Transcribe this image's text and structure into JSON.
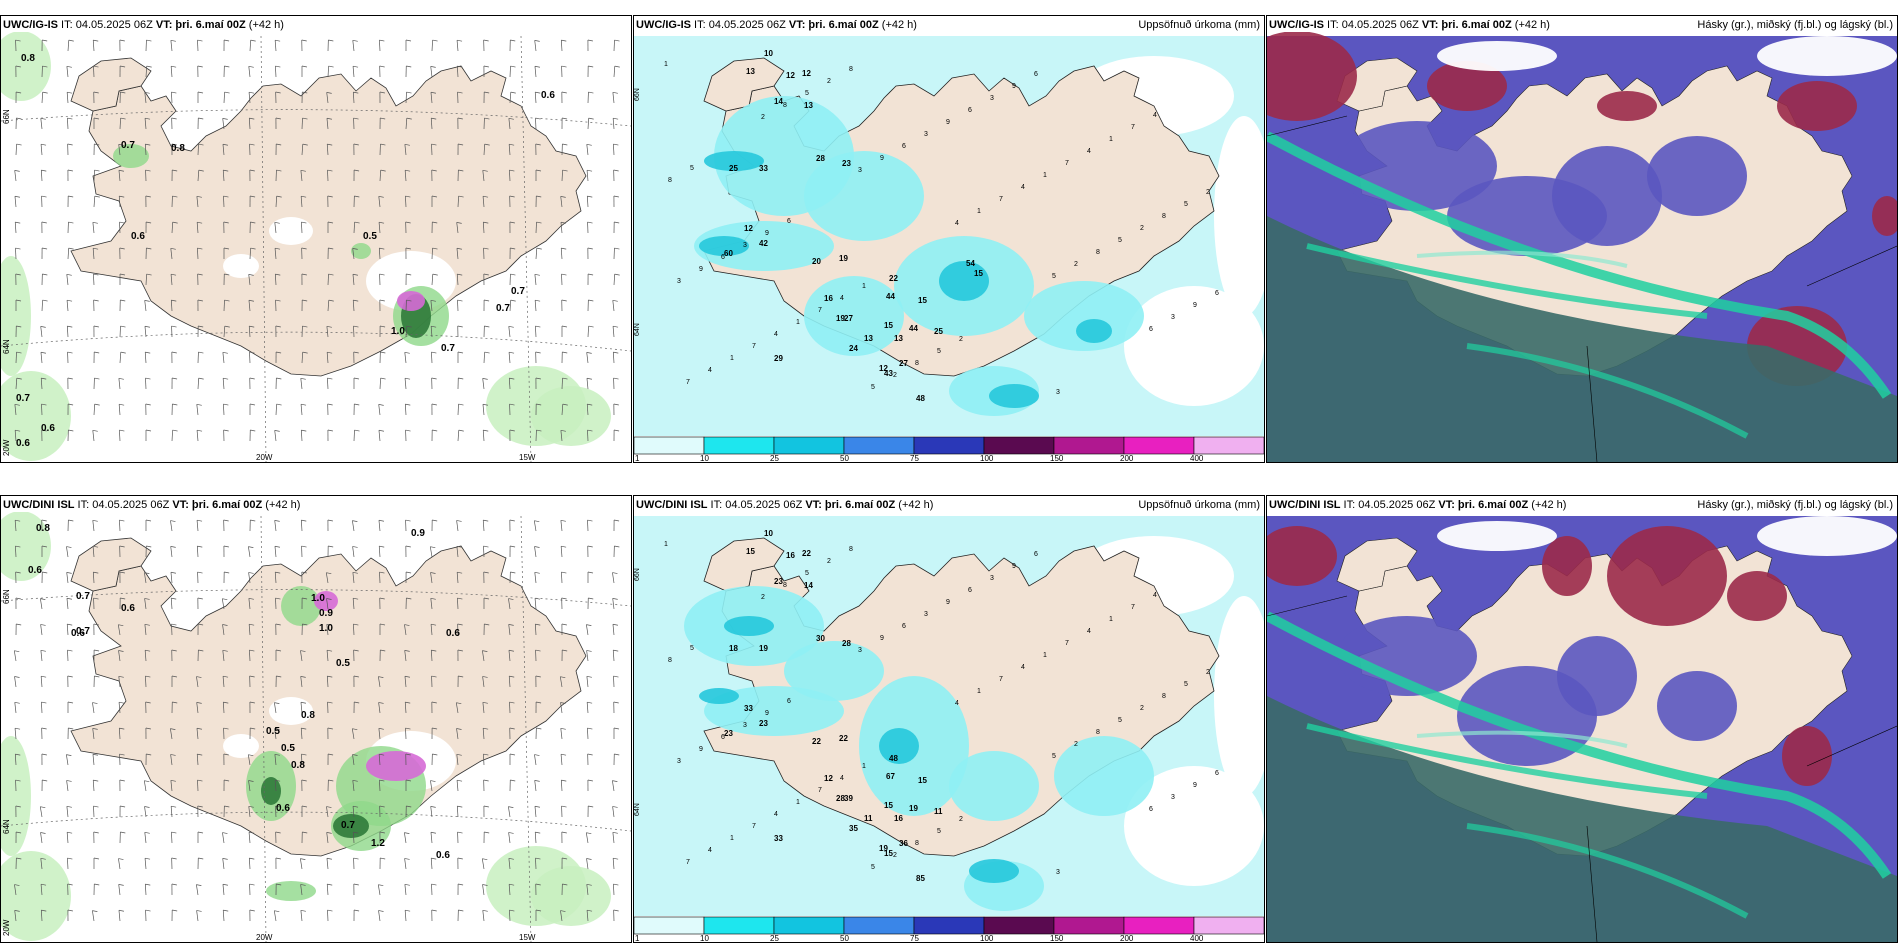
{
  "colors": {
    "land": "#f2e3d5",
    "sea_white": "#ffffff",
    "light_green": "#c8f0c0",
    "mid_green": "#8fd88a",
    "dark_green": "#2f7a3a",
    "magenta": "#d66ad6",
    "cyan_light": "#c8f6f8",
    "cyan_mid": "#8ff0f4",
    "cyan_dark": "#26c8dc",
    "blue_mid": "#3a86d8",
    "cloud_blue": "#5b56c0",
    "cloud_red": "#9b2a4a",
    "cloud_dark": "#3a6a68",
    "jet_green": "#20d0a0"
  },
  "panels": [
    {
      "id": "wind-ig",
      "title_model": "UWC/IG-IS",
      "title_it": "IT: 04.05.2025 06Z",
      "title_vt_label": "VT:",
      "title_vt": "þri. 6.maí 00Z",
      "title_lead": "(+42 h)",
      "right_title": "",
      "labels": [
        "0.8",
        "0.7",
        "0.8",
        "0.6",
        "0.5",
        "0.7",
        "0.7",
        "1.0",
        "0.7",
        "0.6",
        "0.7",
        "0.6",
        "0.6"
      ],
      "axis": {
        "lon": [
          "20W",
          "15W"
        ],
        "lat": [
          "66N",
          "64N",
          "20W"
        ]
      }
    },
    {
      "id": "precip-ig",
      "title_model": "UWC/IG-IS",
      "title_it": "IT: 04.05.2025 06Z",
      "title_vt_label": "VT:",
      "title_vt": "þri. 6.maí 00Z",
      "title_lead": "(+42 h)",
      "right_title": "Uppsöfnuð úrkoma (mm)",
      "labels": [
        "10",
        "13",
        "12",
        "14",
        "12",
        "13",
        "25",
        "33",
        "28",
        "23",
        "12",
        "60",
        "42",
        "20",
        "19",
        "16",
        "19",
        "27",
        "44",
        "22",
        "15",
        "44",
        "24",
        "29",
        "13",
        "13",
        "12",
        "43",
        "48",
        "27",
        "25",
        "15",
        "15",
        "54"
      ],
      "axis": {
        "lat": [
          "66N",
          "64N"
        ]
      }
    },
    {
      "id": "cloud-ig",
      "title_model": "UWC/IG-IS",
      "title_it": "IT: 04.05.2025 06Z",
      "title_vt_label": "VT:",
      "title_vt": "þri. 6.maí 00Z",
      "title_lead": "(+42 h)",
      "right_title": "Hásky (gr.), miðský (fj.bl.) og lágský (bl.)"
    },
    {
      "id": "wind-dini",
      "title_model": "UWC/DINI ISL",
      "title_it": "IT: 04.05.2025 06Z",
      "title_vt_label": "VT:",
      "title_vt": "þri. 6.maí 00Z",
      "title_lead": "(+42 h)",
      "right_title": "",
      "labels": [
        "0.8",
        "0.6",
        "0.7",
        "0.7",
        "0.6",
        "0.9",
        "1.0",
        "0.9",
        "1.0",
        "0.5",
        "0.6",
        "0.6",
        "0.5",
        "0.5",
        "0.8",
        "0.8",
        "0.6",
        "0.7",
        "1.2",
        "0.6"
      ],
      "axis": {
        "lon": [
          "20W",
          "15W"
        ],
        "lat": [
          "66N",
          "64N",
          "20W"
        ]
      }
    },
    {
      "id": "precip-dini",
      "title_model": "UWC/DINI ISL",
      "title_it": "IT: 04.05.2025 06Z",
      "title_vt_label": "VT:",
      "title_vt": "þri. 6.maí 00Z",
      "title_lead": "(+42 h)",
      "right_title": "Uppsöfnuð úrkoma (mm)",
      "labels": [
        "10",
        "15",
        "16",
        "23",
        "22",
        "14",
        "18",
        "19",
        "30",
        "28",
        "33",
        "23",
        "23",
        "22",
        "22",
        "12",
        "28",
        "39",
        "67",
        "48",
        "15",
        "19",
        "35",
        "33",
        "11",
        "16",
        "19",
        "15",
        "85",
        "36",
        "11",
        "15"
      ],
      "axis": {
        "lat": [
          "66N",
          "64N"
        ]
      }
    },
    {
      "id": "cloud-dini",
      "title_model": "UWC/DINI ISL",
      "title_it": "IT: 04.05.2025 06Z",
      "title_vt_label": "VT:",
      "title_vt": "þri. 6.maí 00Z",
      "title_lead": "(+42 h)",
      "right_title": "Hásky (gr.), miðský (fj.bl.) og lágský (bl.)"
    }
  ],
  "colorbar": {
    "ticks": [
      "1",
      "10",
      "25",
      "50",
      "75",
      "100",
      "150",
      "200",
      "400"
    ],
    "colors": [
      "#e0fbfc",
      "#1ee6ee",
      "#12c4e0",
      "#3a86e8",
      "#2a38b8",
      "#5a0a50",
      "#b01890",
      "#e820c0",
      "#f0b0f0"
    ]
  }
}
